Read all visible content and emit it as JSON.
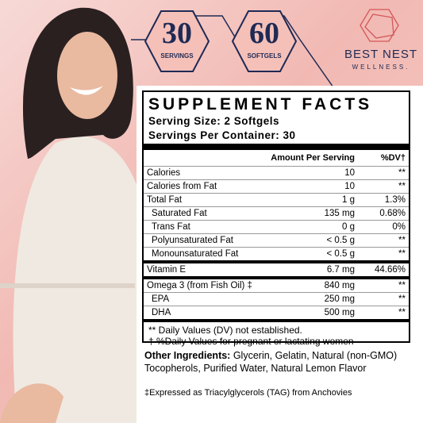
{
  "badges": [
    {
      "number": "30",
      "label": "SERVINGS"
    },
    {
      "number": "60",
      "label": "SOFTGELS"
    }
  ],
  "brand": {
    "name": "BEST NEST",
    "tagline": "WELLNESS."
  },
  "facts": {
    "title": "SUPPLEMENT FACTS",
    "serving_size": "Serving Size: 2 Softgels",
    "servings_per_container": "Servings Per Container: 30",
    "header": [
      "Amount Per Serving",
      "%DV†"
    ],
    "sections": [
      {
        "rows": [
          {
            "cells": [
              "Calories",
              "10",
              "**"
            ]
          },
          {
            "cells": [
              "Calories from Fat",
              "10",
              "**"
            ]
          },
          {
            "cells": [
              "Total Fat",
              "1 g",
              "1.3%"
            ],
            "sub": [
              {
                "cells": [
                  "Saturated Fat",
                  "135 mg",
                  "0.68%"
                ]
              },
              {
                "cells": [
                  "Trans Fat",
                  "0 g",
                  "0%"
                ]
              },
              {
                "cells": [
                  "Polyunsaturated Fat",
                  "< 0.5 g",
                  "**"
                ]
              },
              {
                "cells": [
                  "Monounsaturated Fat",
                  "< 0.5 g",
                  "**"
                ]
              }
            ]
          }
        ]
      },
      {
        "rows": [
          {
            "cells": [
              "Vitamin E",
              "6.7 mg",
              "44.66%"
            ]
          }
        ]
      },
      {
        "rows": [
          {
            "cells": [
              "Omega 3 (from Fish Oil) ‡",
              "840 mg",
              "**"
            ],
            "sub": [
              {
                "cells": [
                  "EPA",
                  "250 mg",
                  "**"
                ]
              },
              {
                "cells": [
                  "DHA",
                  "500 mg",
                  "**"
                ]
              }
            ]
          }
        ]
      }
    ],
    "footnotes": [
      "** Daily Values (DV) not established.",
      "† %Daily Values for pregnant or lactating women"
    ]
  },
  "other_ingredients": {
    "label": "Other Ingredients:",
    "text": "Glycerin, Gelatin, Natural (non-GMO) Tocopherols, Purified Water, Natural Lemon Flavor"
  },
  "note": "‡Expressed as Triacylglycerols (TAG) from Anchovies"
}
